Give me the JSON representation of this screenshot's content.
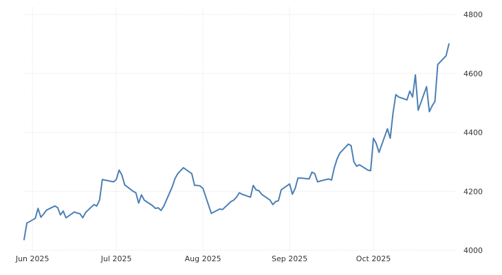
{
  "chart_data": {
    "type": "line",
    "title": "",
    "xlabel": "",
    "ylabel": "",
    "x_ticks": [
      {
        "label": "Jun 2025",
        "date": "2025-06-01"
      },
      {
        "label": "Jul 2025",
        "date": "2025-07-01"
      },
      {
        "label": "Aug 2025",
        "date": "2025-08-01"
      },
      {
        "label": "Sep 2025",
        "date": "2025-09-01"
      },
      {
        "label": "Oct 2025",
        "date": "2025-10-01"
      }
    ],
    "y_ticks": [
      {
        "label": "4000",
        "value": 4000
      },
      {
        "label": "4200",
        "value": 4200
      },
      {
        "label": "4400",
        "value": 4400
      },
      {
        "label": "4600",
        "value": 4600
      },
      {
        "label": "4800",
        "value": 4800
      }
    ],
    "xlim": [
      "2025-05-29",
      "2025-10-31"
    ],
    "ylim": [
      4000,
      4800
    ],
    "grid": true,
    "y_axis_position": "right",
    "line_color": "#4a7fb5",
    "series": [
      {
        "x": [
          "2025-05-29",
          "2025-05-30",
          "2025-06-02",
          "2025-06-03",
          "2025-06-04",
          "2025-06-05",
          "2025-06-06",
          "2025-06-09",
          "2025-06-10",
          "2025-06-11",
          "2025-06-12",
          "2025-06-13",
          "2025-06-16",
          "2025-06-17",
          "2025-06-18",
          "2025-06-19",
          "2025-06-20",
          "2025-06-23",
          "2025-06-24",
          "2025-06-25",
          "2025-06-26",
          "2025-06-27",
          "2025-06-30",
          "2025-07-01",
          "2025-07-02",
          "2025-07-03",
          "2025-07-04",
          "2025-07-07",
          "2025-07-08",
          "2025-07-09",
          "2025-07-10",
          "2025-07-11",
          "2025-07-14",
          "2025-07-15",
          "2025-07-16",
          "2025-07-17",
          "2025-07-18",
          "2025-07-21",
          "2025-07-22",
          "2025-07-23",
          "2025-07-24",
          "2025-07-25",
          "2025-07-28",
          "2025-07-29",
          "2025-07-30",
          "2025-07-31",
          "2025-08-01",
          "2025-08-04",
          "2025-08-05",
          "2025-08-06",
          "2025-08-07",
          "2025-08-08",
          "2025-08-11",
          "2025-08-12",
          "2025-08-13",
          "2025-08-14",
          "2025-08-15",
          "2025-08-18",
          "2025-08-19",
          "2025-08-20",
          "2025-08-21",
          "2025-08-22",
          "2025-08-25",
          "2025-08-26",
          "2025-08-27",
          "2025-08-28",
          "2025-08-29",
          "2025-09-01",
          "2025-09-02",
          "2025-09-03",
          "2025-09-04",
          "2025-09-05",
          "2025-09-08",
          "2025-09-09",
          "2025-09-10",
          "2025-09-11",
          "2025-09-12",
          "2025-09-15",
          "2025-09-16",
          "2025-09-17",
          "2025-09-18",
          "2025-09-19",
          "2025-09-22",
          "2025-09-23",
          "2025-09-24",
          "2025-09-25",
          "2025-09-26",
          "2025-09-29",
          "2025-09-30",
          "2025-10-01",
          "2025-10-02",
          "2025-10-03",
          "2025-10-06",
          "2025-10-07",
          "2025-10-08",
          "2025-10-09",
          "2025-10-10",
          "2025-10-13",
          "2025-10-14",
          "2025-10-15",
          "2025-10-16",
          "2025-10-17",
          "2025-10-20",
          "2025-10-21",
          "2025-10-22",
          "2025-10-23",
          "2025-10-24",
          "2025-10-27",
          "2025-10-28"
        ],
        "values": [
          4036,
          4092,
          4108,
          4142,
          4112,
          4123,
          4136,
          4150,
          4145,
          4120,
          4133,
          4110,
          4130,
          4126,
          4124,
          4110,
          4128,
          4155,
          4150,
          4170,
          4240,
          4238,
          4232,
          4240,
          4272,
          4255,
          4222,
          4200,
          4195,
          4160,
          4188,
          4170,
          4151,
          4142,
          4144,
          4135,
          4150,
          4215,
          4243,
          4260,
          4270,
          4280,
          4260,
          4220,
          4220,
          4218,
          4210,
          4125,
          4130,
          4135,
          4140,
          4138,
          4165,
          4170,
          4180,
          4195,
          4190,
          4180,
          4220,
          4205,
          4202,
          4190,
          4170,
          4155,
          4165,
          4168,
          4205,
          4225,
          4190,
          4210,
          4245,
          4245,
          4242,
          4265,
          4260,
          4232,
          4235,
          4242,
          4238,
          4280,
          4310,
          4330,
          4360,
          4355,
          4300,
          4285,
          4290,
          4272,
          4270,
          4380,
          4362,
          4332,
          4412,
          4380,
          4465,
          4528,
          4520,
          4510,
          4540,
          4520,
          4595,
          4475,
          4555,
          4470,
          4490,
          4505,
          4630,
          4660,
          4700
        ]
      }
    ]
  }
}
